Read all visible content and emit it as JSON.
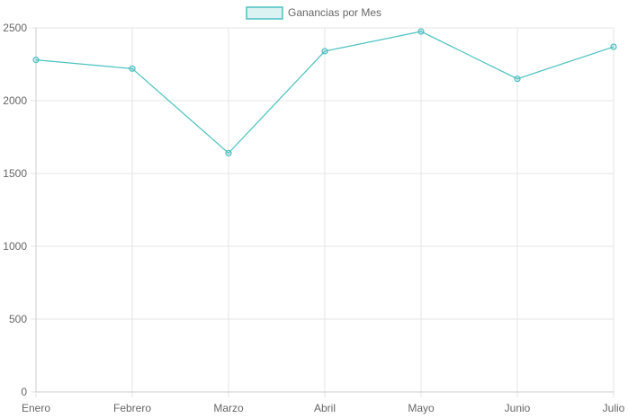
{
  "chart_data": {
    "type": "line",
    "categories": [
      "Enero",
      "Febrero",
      "Marzo",
      "Abril",
      "Mayo",
      "Junio",
      "Julio"
    ],
    "series": [
      {
        "name": "Ganancias por Mes",
        "values": [
          2280,
          2220,
          1640,
          2340,
          2475,
          2150,
          2370
        ]
      }
    ],
    "yticks": [
      0,
      500,
      1000,
      1500,
      2000,
      2500
    ],
    "ylim": [
      0,
      2500
    ],
    "grid": true,
    "legend": "top-center"
  },
  "colors": {
    "line": "#4bc0c0",
    "fill": "rgba(75,192,192,0.2)",
    "grid": "#e5e5e5",
    "axis": "#cccccc",
    "text": "#666666"
  }
}
